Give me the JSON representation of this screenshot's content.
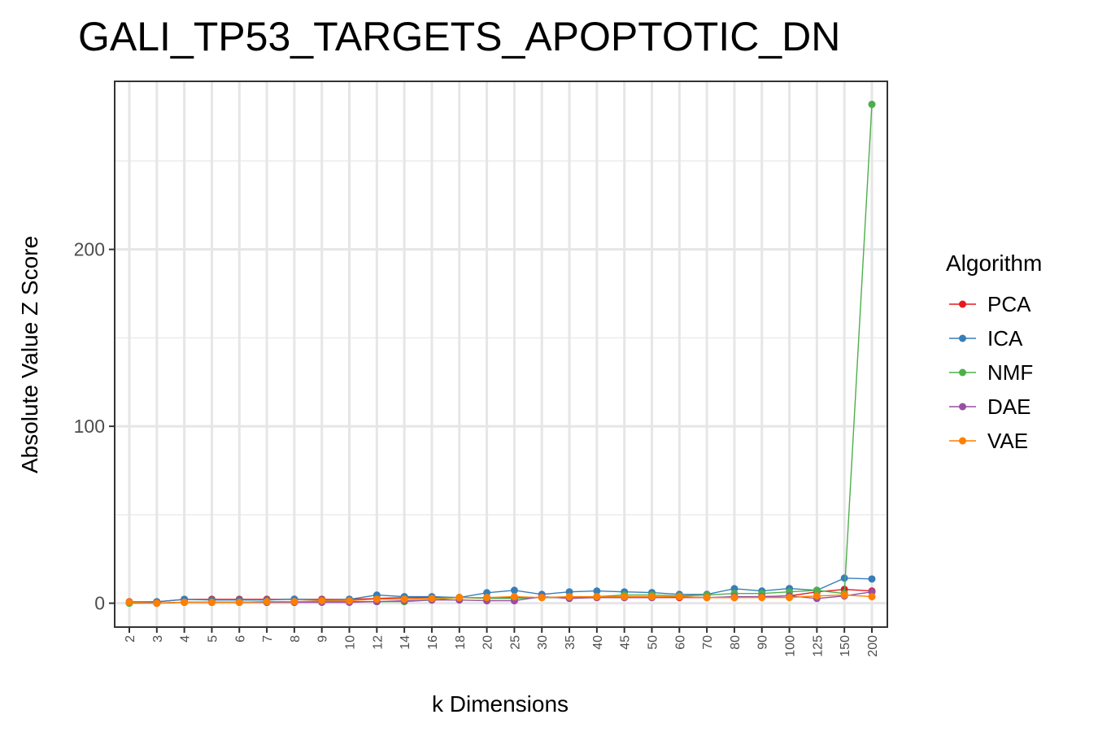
{
  "chart_data": {
    "type": "line",
    "title": "GALI_TP53_TARGETS_APOPTOTIC_DN",
    "xlabel": "k Dimensions",
    "ylabel": "Absolute Value Z Score",
    "categories": [
      "2",
      "3",
      "4",
      "5",
      "6",
      "7",
      "8",
      "9",
      "10",
      "12",
      "14",
      "16",
      "18",
      "20",
      "25",
      "30",
      "35",
      "40",
      "45",
      "50",
      "60",
      "70",
      "80",
      "90",
      "100",
      "125",
      "150",
      "200"
    ],
    "yticks": [
      0,
      100,
      200
    ],
    "ylim": [
      -13.5,
      295
    ],
    "grid": true,
    "legend": {
      "title": "Algorithm",
      "position": "right"
    },
    "series": [
      {
        "name": "PCA",
        "color": "#E41A1C",
        "values": [
          0.8,
          0.8,
          2.2,
          2.2,
          2.2,
          2.2,
          2.2,
          2.2,
          2.2,
          2.7,
          3.2,
          3.2,
          3.2,
          3.2,
          3.2,
          3.2,
          3.2,
          3.2,
          3.2,
          3.2,
          3.2,
          3.2,
          3.2,
          3.7,
          4.1,
          6.4,
          7.8,
          6.9
        ]
      },
      {
        "name": "ICA",
        "color": "#377EB8",
        "values": [
          0.5,
          0.8,
          2.2,
          1.8,
          1.8,
          1.8,
          2.3,
          1.8,
          2.2,
          4.6,
          3.7,
          3.7,
          3.2,
          5.9,
          7.3,
          5.0,
          6.4,
          6.9,
          6.4,
          6.0,
          5.0,
          5.0,
          8.2,
          6.9,
          8.3,
          7.3,
          14.2,
          13.7
        ]
      },
      {
        "name": "NMF",
        "color": "#4DAF4A",
        "values": [
          0.0,
          0.0,
          0.5,
          0.5,
          0.5,
          0.5,
          0.5,
          0.9,
          0.9,
          0.9,
          0.9,
          1.8,
          3.2,
          2.7,
          2.7,
          3.2,
          3.2,
          3.7,
          4.6,
          4.6,
          4.1,
          4.6,
          5.5,
          5.5,
          6.4,
          7.3,
          5.5,
          282.0
        ]
      },
      {
        "name": "DAE",
        "color": "#984EA3",
        "values": [
          0.5,
          0.0,
          0.5,
          0.5,
          0.5,
          0.5,
          0.5,
          0.5,
          0.5,
          0.9,
          1.4,
          1.8,
          1.8,
          1.4,
          1.4,
          3.7,
          2.7,
          3.2,
          3.2,
          3.2,
          3.7,
          3.2,
          3.7,
          3.7,
          4.1,
          2.7,
          4.1,
          6.4
        ]
      },
      {
        "name": "VAE",
        "color": "#FF7F00",
        "values": [
          0.5,
          0.0,
          0.5,
          0.5,
          0.5,
          0.9,
          0.9,
          1.4,
          1.4,
          2.3,
          2.3,
          2.7,
          3.2,
          3.2,
          3.7,
          3.2,
          3.7,
          3.7,
          3.7,
          3.7,
          3.7,
          3.2,
          3.2,
          3.2,
          3.2,
          4.1,
          4.6,
          3.7
        ]
      }
    ]
  }
}
